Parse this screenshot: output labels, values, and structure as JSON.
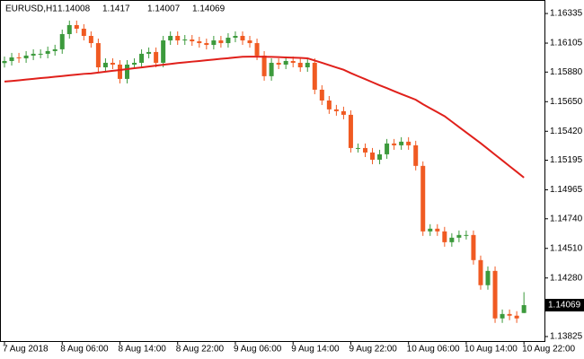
{
  "chart_data": {
    "type": "candlestick",
    "title": "EURUSD,H1",
    "categories": [
      "7 Aug 2018",
      null,
      null,
      null,
      null,
      null,
      null,
      null,
      "8 Aug 06:00",
      null,
      null,
      null,
      null,
      null,
      null,
      null,
      "8 Aug 14:00",
      null,
      null,
      null,
      null,
      null,
      null,
      null,
      "8 Aug 22:00",
      null,
      null,
      null,
      null,
      null,
      null,
      null,
      "9 Aug 06:00",
      null,
      null,
      null,
      null,
      null,
      null,
      null,
      "9 Aug 14:00",
      null,
      null,
      null,
      null,
      null,
      null,
      null,
      "9 Aug 22:00",
      null,
      null,
      null,
      null,
      null,
      null,
      null,
      "10 Aug 06:00",
      null,
      null,
      null,
      null,
      null,
      null,
      null,
      "10 Aug 14:00",
      null,
      null,
      null,
      null,
      null,
      null,
      null,
      "10 Aug 22:00"
    ],
    "open": [
      1.1595,
      1.15966,
      1.15994,
      1.15987,
      1.16008,
      1.16022,
      1.16022,
      1.16043,
      1.16057,
      1.16175,
      1.16245,
      1.16217,
      1.16161,
      1.16105,
      1.15917,
      1.15952,
      1.15938,
      1.15827,
      1.15938,
      1.15952,
      1.16022,
      1.16036,
      1.15952,
      1.16126,
      1.16161,
      1.16126,
      1.16133,
      1.16119,
      1.16105,
      1.16091,
      1.16126,
      1.16105,
      1.16147,
      1.16161,
      1.16126,
      1.16105,
      1.16008,
      1.15848,
      1.15952,
      1.15938,
      1.15966,
      1.15952,
      1.15917,
      1.15952,
      1.15743,
      1.15659,
      1.1559,
      1.15576,
      1.15548,
      1.1529,
      1.1529,
      1.15255,
      1.15199,
      1.15241,
      1.15325,
      1.15311,
      1.15339,
      1.15311,
      1.15151,
      1.14642,
      1.14663,
      1.14642,
      1.14558,
      1.14593,
      1.14614,
      1.14614,
      1.14419,
      1.14224,
      1.14335,
      1.13966,
      1.14,
      1.13987,
      1.14008
    ],
    "high": [
      1.16001,
      1.16029,
      1.16029,
      1.16043,
      1.16057,
      1.16057,
      1.16078,
      1.16092,
      1.1621,
      1.1628,
      1.1628,
      1.16252,
      1.16196,
      1.1614,
      1.15987,
      1.15987,
      1.15973,
      1.15973,
      1.15987,
      1.16057,
      1.16071,
      1.16071,
      1.16161,
      1.16196,
      1.16196,
      1.16168,
      1.16168,
      1.16154,
      1.1614,
      1.16161,
      1.16161,
      1.16182,
      1.16196,
      1.16196,
      1.16161,
      1.1614,
      1.16043,
      1.15987,
      1.15987,
      1.16001,
      1.16001,
      1.15987,
      1.15987,
      1.15987,
      1.15778,
      1.15694,
      1.15625,
      1.15611,
      1.15583,
      1.15325,
      1.15325,
      1.1529,
      1.15276,
      1.1536,
      1.1536,
      1.15374,
      1.15374,
      1.15346,
      1.15186,
      1.14698,
      1.14698,
      1.14677,
      1.14628,
      1.14649,
      1.14649,
      1.14649,
      1.14454,
      1.1437,
      1.1437,
      1.14035,
      1.14035,
      1.14022,
      1.1417
    ],
    "low": [
      1.15915,
      1.15931,
      1.15952,
      1.15952,
      1.15973,
      1.15987,
      1.15987,
      1.16008,
      1.16022,
      1.1614,
      1.16182,
      1.16126,
      1.1607,
      1.15882,
      1.15882,
      1.15903,
      1.15792,
      1.15792,
      1.15903,
      1.15917,
      1.15987,
      1.15917,
      1.15917,
      1.16091,
      1.16091,
      1.16091,
      1.16084,
      1.1607,
      1.16056,
      1.16056,
      1.1607,
      1.1607,
      1.16112,
      1.16091,
      1.1607,
      1.15973,
      1.15813,
      1.15813,
      1.15903,
      1.15903,
      1.15917,
      1.15882,
      1.15882,
      1.15708,
      1.15624,
      1.15555,
      1.15541,
      1.15513,
      1.15255,
      1.15255,
      1.1522,
      1.15164,
      1.15164,
      1.15206,
      1.15276,
      1.15276,
      1.15276,
      1.15116,
      1.14607,
      1.14607,
      1.14607,
      1.14523,
      1.14523,
      1.14558,
      1.14579,
      1.14384,
      1.14189,
      1.14189,
      1.13931,
      1.13931,
      1.13952,
      1.13931,
      1.14007
    ],
    "close": [
      1.15966,
      1.15994,
      1.15987,
      1.16008,
      1.16022,
      1.16022,
      1.16043,
      1.16057,
      1.16175,
      1.16245,
      1.16217,
      1.16161,
      1.16105,
      1.15917,
      1.15952,
      1.15938,
      1.15827,
      1.15938,
      1.15952,
      1.16022,
      1.16036,
      1.15952,
      1.16126,
      1.16161,
      1.16126,
      1.16133,
      1.16119,
      1.16105,
      1.16091,
      1.16126,
      1.16105,
      1.16147,
      1.16161,
      1.16126,
      1.16105,
      1.16008,
      1.15848,
      1.15952,
      1.15938,
      1.15966,
      1.15952,
      1.15917,
      1.15952,
      1.15743,
      1.15659,
      1.1559,
      1.15576,
      1.15548,
      1.1529,
      1.1529,
      1.15255,
      1.15199,
      1.15241,
      1.15325,
      1.15311,
      1.15339,
      1.15311,
      1.15151,
      1.14642,
      1.14663,
      1.14642,
      1.14558,
      1.14593,
      1.14614,
      1.14614,
      1.14419,
      1.14224,
      1.14335,
      1.13966,
      1.14,
      1.13987,
      1.13966,
      1.14069
    ],
    "up_color": "#3c9a3c",
    "down_color": "#f05a22",
    "overlay": {
      "color": "#e0201b",
      "values": [
        1.15806,
        1.15811,
        1.15816,
        1.15822,
        1.15827,
        1.15833,
        1.15838,
        1.15844,
        1.15849,
        1.15855,
        1.1586,
        1.15866,
        1.15869,
        1.15876,
        1.15883,
        1.1589,
        1.15896,
        1.15903,
        1.1591,
        1.15916,
        1.15923,
        1.1593,
        1.15937,
        1.15943,
        1.1595,
        1.15955,
        1.15961,
        1.15966,
        1.15972,
        1.15977,
        1.15983,
        1.15988,
        1.15994,
        1.15999,
        1.16,
        1.16,
        1.15999,
        1.15998,
        1.15996,
        1.15994,
        1.15992,
        1.1599,
        1.15987,
        1.1597,
        1.15952,
        1.15934,
        1.15916,
        1.15898,
        1.15872,
        1.15848,
        1.15825,
        1.15801,
        1.15777,
        1.15755,
        1.15732,
        1.15709,
        1.15687,
        1.15665,
        1.1563,
        1.15599,
        1.15568,
        1.15537,
        1.15495,
        1.15453,
        1.15411,
        1.15369,
        1.15327,
        1.15283,
        1.15238,
        1.15194,
        1.15149,
        1.15105,
        1.1506
      ]
    },
    "ylim": [
      1.1379,
      1.1644
    ],
    "yticks": [
      1.16335,
      1.16105,
      {
        "value": 1.1588,
        "label": "1.15880"
      },
      {
        "value": 1.1565,
        "label": "1.15650"
      },
      {
        "value": 1.1542,
        "label": "1.15420"
      },
      1.15195,
      1.14965,
      {
        "value": 1.1474,
        "label": "1.14740"
      },
      {
        "value": 1.1451,
        "label": "1.14510"
      },
      {
        "value": 1.1428,
        "label": "1.14280"
      },
      1.13825
    ]
  }
}
